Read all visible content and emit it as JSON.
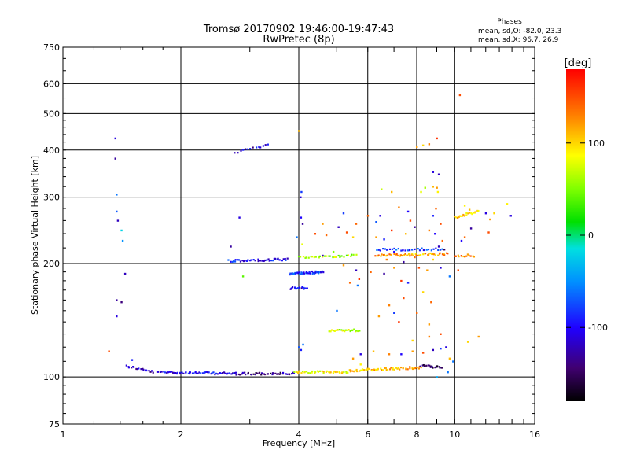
{
  "chart_data": {
    "type": "scatter",
    "title": "Tromsø 20170902 19:46:00-19:47:43",
    "subtitle": "RwPretec (8p)",
    "xlabel": "Frequency [MHz]",
    "ylabel": "Stationary phase Virtual Height [km]",
    "x_scale": "log",
    "y_scale": "log",
    "xlim": [
      1,
      16
    ],
    "ylim": [
      75,
      750
    ],
    "xticks": [
      "1",
      "2",
      "4",
      "6",
      "8",
      "10",
      "16"
    ],
    "yticks": [
      "75",
      "100",
      "200",
      "300",
      "400",
      "500",
      "600",
      "750"
    ],
    "grid": true,
    "phase_info": {
      "heading": "Phases",
      "line_o": "mean, sd,O: -82.0, 23.3",
      "line_x": "mean, sd,X:  96.7, 26.9"
    },
    "colorbar": {
      "label": "[deg]",
      "range": [
        -180,
        180
      ],
      "ticks": [
        "100",
        "0",
        "-100"
      ],
      "tick_values": [
        100,
        0,
        -100
      ]
    },
    "traces": [
      {
        "x_start": 1.45,
        "x_end": 1.7,
        "y_start": 107,
        "y_end": 103,
        "n": 18,
        "phase": -120
      },
      {
        "x_start": 1.75,
        "x_end": 2.75,
        "y_start": 103,
        "y_end": 102,
        "n": 55,
        "phase": -105
      },
      {
        "x_start": 2.75,
        "x_end": 3.9,
        "y_start": 102,
        "y_end": 102,
        "n": 40,
        "phase": -140
      },
      {
        "x_start": 3.9,
        "x_end": 5.4,
        "y_start": 103,
        "y_end": 103,
        "n": 40,
        "phase": 90
      },
      {
        "x_start": 5.4,
        "x_end": 8.2,
        "y_start": 104,
        "y_end": 106,
        "n": 55,
        "phase": 110
      },
      {
        "x_start": 8.2,
        "x_end": 9.3,
        "y_start": 107,
        "y_end": 106,
        "n": 20,
        "phase": -150
      },
      {
        "x_start": 2.65,
        "x_end": 3.75,
        "y_start": 203,
        "y_end": 205,
        "n": 40,
        "phase": -95
      },
      {
        "x_start": 3.8,
        "x_end": 4.6,
        "y_start": 188,
        "y_end": 190,
        "n": 45,
        "phase": -85
      },
      {
        "x_start": 3.8,
        "x_end": 4.2,
        "y_start": 172,
        "y_end": 172,
        "n": 18,
        "phase": -100
      },
      {
        "x_start": 4.8,
        "x_end": 5.7,
        "y_start": 133,
        "y_end": 133,
        "n": 25,
        "phase": 75
      },
      {
        "x_start": 4.0,
        "x_end": 5.6,
        "y_start": 208,
        "y_end": 210,
        "n": 30,
        "phase": 60
      },
      {
        "x_start": 6.3,
        "x_end": 9.6,
        "y_start": 210,
        "y_end": 212,
        "n": 50,
        "phase": 120
      },
      {
        "x_start": 6.3,
        "x_end": 9.3,
        "y_start": 218,
        "y_end": 218,
        "n": 30,
        "phase": -80
      },
      {
        "x_start": 10.0,
        "x_end": 11.2,
        "y_start": 210,
        "y_end": 210,
        "n": 14,
        "phase": 130
      },
      {
        "x_start": 10.0,
        "x_end": 11.5,
        "y_start": 265,
        "y_end": 275,
        "n": 20,
        "phase": 100
      },
      {
        "x_start": 2.75,
        "x_end": 3.35,
        "y_start": 395,
        "y_end": 412,
        "n": 14,
        "phase": -110
      }
    ],
    "points": [
      {
        "x": 1.36,
        "y": 430,
        "phase": -110
      },
      {
        "x": 1.36,
        "y": 380,
        "phase": -130
      },
      {
        "x": 1.37,
        "y": 305,
        "phase": -60
      },
      {
        "x": 1.37,
        "y": 275,
        "phase": -70
      },
      {
        "x": 1.38,
        "y": 260,
        "phase": -120
      },
      {
        "x": 1.41,
        "y": 245,
        "phase": -20
      },
      {
        "x": 1.42,
        "y": 230,
        "phase": -50
      },
      {
        "x": 1.44,
        "y": 188,
        "phase": -120
      },
      {
        "x": 1.37,
        "y": 160,
        "phase": -130
      },
      {
        "x": 1.41,
        "y": 158,
        "phase": -140
      },
      {
        "x": 1.37,
        "y": 145,
        "phase": -110
      },
      {
        "x": 1.31,
        "y": 117,
        "phase": 150
      },
      {
        "x": 1.5,
        "y": 111,
        "phase": -90
      },
      {
        "x": 2.68,
        "y": 222,
        "phase": -130
      },
      {
        "x": 2.82,
        "y": 265,
        "phase": -110
      },
      {
        "x": 2.88,
        "y": 185,
        "phase": 40
      },
      {
        "x": 4.0,
        "y": 450,
        "phase": 110
      },
      {
        "x": 4.06,
        "y": 310,
        "phase": -80
      },
      {
        "x": 4.04,
        "y": 300,
        "phase": -110
      },
      {
        "x": 4.05,
        "y": 265,
        "phase": -100
      },
      {
        "x": 4.09,
        "y": 255,
        "phase": -130
      },
      {
        "x": 3.95,
        "y": 235,
        "phase": -60
      },
      {
        "x": 4.08,
        "y": 225,
        "phase": 80
      },
      {
        "x": 4.0,
        "y": 120,
        "phase": -70
      },
      {
        "x": 4.05,
        "y": 118,
        "phase": -90
      },
      {
        "x": 4.1,
        "y": 122,
        "phase": -60
      },
      {
        "x": 4.4,
        "y": 240,
        "phase": 150
      },
      {
        "x": 4.7,
        "y": 238,
        "phase": 140
      },
      {
        "x": 4.6,
        "y": 255,
        "phase": 120
      },
      {
        "x": 5.05,
        "y": 250,
        "phase": -120
      },
      {
        "x": 5.3,
        "y": 242,
        "phase": 150
      },
      {
        "x": 5.5,
        "y": 235,
        "phase": 100
      },
      {
        "x": 5.6,
        "y": 255,
        "phase": 140
      },
      {
        "x": 5.2,
        "y": 198,
        "phase": 120
      },
      {
        "x": 5.6,
        "y": 192,
        "phase": -120
      },
      {
        "x": 5.7,
        "y": 182,
        "phase": 160
      },
      {
        "x": 5.0,
        "y": 150,
        "phase": -60
      },
      {
        "x": 5.4,
        "y": 178,
        "phase": 140
      },
      {
        "x": 5.65,
        "y": 175,
        "phase": -60
      },
      {
        "x": 5.5,
        "y": 112,
        "phase": 120
      },
      {
        "x": 5.75,
        "y": 108,
        "phase": 90
      },
      {
        "x": 5.75,
        "y": 115,
        "phase": -110
      },
      {
        "x": 6.5,
        "y": 315,
        "phase": 70
      },
      {
        "x": 6.9,
        "y": 310,
        "phase": 110
      },
      {
        "x": 7.2,
        "y": 282,
        "phase": 130
      },
      {
        "x": 7.6,
        "y": 275,
        "phase": -100
      },
      {
        "x": 7.7,
        "y": 260,
        "phase": 150
      },
      {
        "x": 7.9,
        "y": 250,
        "phase": -130
      },
      {
        "x": 8.3,
        "y": 412,
        "phase": 100
      },
      {
        "x": 8.6,
        "y": 415,
        "phase": 130
      },
      {
        "x": 8.0,
        "y": 408,
        "phase": 120
      },
      {
        "x": 9.0,
        "y": 430,
        "phase": 160
      },
      {
        "x": 8.8,
        "y": 350,
        "phase": -110
      },
      {
        "x": 9.1,
        "y": 345,
        "phase": -120
      },
      {
        "x": 8.8,
        "y": 320,
        "phase": 110
      },
      {
        "x": 9.0,
        "y": 318,
        "phase": 120
      },
      {
        "x": 9.05,
        "y": 310,
        "phase": 90
      },
      {
        "x": 8.4,
        "y": 318,
        "phase": 60
      },
      {
        "x": 8.2,
        "y": 310,
        "phase": 80
      },
      {
        "x": 8.95,
        "y": 280,
        "phase": 140
      },
      {
        "x": 8.8,
        "y": 268,
        "phase": -90
      },
      {
        "x": 9.2,
        "y": 255,
        "phase": 150
      },
      {
        "x": 8.6,
        "y": 245,
        "phase": 130
      },
      {
        "x": 8.9,
        "y": 240,
        "phase": -100
      },
      {
        "x": 6.3,
        "y": 235,
        "phase": 120
      },
      {
        "x": 6.6,
        "y": 232,
        "phase": -90
      },
      {
        "x": 6.9,
        "y": 245,
        "phase": 160
      },
      {
        "x": 7.5,
        "y": 240,
        "phase": 110
      },
      {
        "x": 6.1,
        "y": 190,
        "phase": 140
      },
      {
        "x": 6.6,
        "y": 188,
        "phase": -130
      },
      {
        "x": 7.0,
        "y": 195,
        "phase": 120
      },
      {
        "x": 7.3,
        "y": 180,
        "phase": 160
      },
      {
        "x": 7.6,
        "y": 178,
        "phase": -90
      },
      {
        "x": 8.1,
        "y": 195,
        "phase": 150
      },
      {
        "x": 8.5,
        "y": 192,
        "phase": 120
      },
      {
        "x": 8.3,
        "y": 168,
        "phase": 100
      },
      {
        "x": 8.7,
        "y": 158,
        "phase": 140
      },
      {
        "x": 9.2,
        "y": 195,
        "phase": -110
      },
      {
        "x": 9.7,
        "y": 185,
        "phase": -60
      },
      {
        "x": 6.8,
        "y": 155,
        "phase": 130
      },
      {
        "x": 7.0,
        "y": 148,
        "phase": -80
      },
      {
        "x": 7.4,
        "y": 162,
        "phase": 150
      },
      {
        "x": 6.4,
        "y": 145,
        "phase": 120
      },
      {
        "x": 7.2,
        "y": 140,
        "phase": 160
      },
      {
        "x": 8.0,
        "y": 148,
        "phase": 140
      },
      {
        "x": 8.6,
        "y": 138,
        "phase": 120
      },
      {
        "x": 8.6,
        "y": 128,
        "phase": 130
      },
      {
        "x": 7.8,
        "y": 125,
        "phase": 100
      },
      {
        "x": 9.2,
        "y": 130,
        "phase": 150
      },
      {
        "x": 6.2,
        "y": 117,
        "phase": 110
      },
      {
        "x": 6.8,
        "y": 115,
        "phase": 130
      },
      {
        "x": 7.3,
        "y": 115,
        "phase": -100
      },
      {
        "x": 7.8,
        "y": 117,
        "phase": 120
      },
      {
        "x": 8.3,
        "y": 116,
        "phase": 150
      },
      {
        "x": 8.8,
        "y": 118,
        "phase": -120
      },
      {
        "x": 9.2,
        "y": 119,
        "phase": -80
      },
      {
        "x": 9.5,
        "y": 120,
        "phase": -110
      },
      {
        "x": 9.7,
        "y": 112,
        "phase": 110
      },
      {
        "x": 9.9,
        "y": 110,
        "phase": -60
      },
      {
        "x": 10.8,
        "y": 124,
        "phase": 100
      },
      {
        "x": 11.5,
        "y": 128,
        "phase": 120
      },
      {
        "x": 10.3,
        "y": 560,
        "phase": 150
      },
      {
        "x": 10.6,
        "y": 285,
        "phase": 90
      },
      {
        "x": 10.9,
        "y": 278,
        "phase": 110
      },
      {
        "x": 12.0,
        "y": 272,
        "phase": -110
      },
      {
        "x": 12.3,
        "y": 262,
        "phase": 120
      },
      {
        "x": 12.6,
        "y": 272,
        "phase": 100
      },
      {
        "x": 13.6,
        "y": 288,
        "phase": 90
      },
      {
        "x": 13.9,
        "y": 268,
        "phase": -110
      },
      {
        "x": 12.2,
        "y": 242,
        "phase": 150
      },
      {
        "x": 11.0,
        "y": 248,
        "phase": -130
      },
      {
        "x": 10.4,
        "y": 230,
        "phase": -100
      },
      {
        "x": 10.6,
        "y": 235,
        "phase": 140
      },
      {
        "x": 10.2,
        "y": 192,
        "phase": 150
      },
      {
        "x": 9.0,
        "y": 100,
        "phase": -40
      },
      {
        "x": 9.6,
        "y": 103,
        "phase": -60
      },
      {
        "x": 5.2,
        "y": 272,
        "phase": -80
      },
      {
        "x": 6.0,
        "y": 268,
        "phase": 140
      },
      {
        "x": 6.3,
        "y": 258,
        "phase": -70
      },
      {
        "x": 6.45,
        "y": 268,
        "phase": -110
      },
      {
        "x": 4.6,
        "y": 210,
        "phase": -120
      },
      {
        "x": 4.9,
        "y": 215,
        "phase": 50
      },
      {
        "x": 6.7,
        "y": 205,
        "phase": 130
      },
      {
        "x": 7.0,
        "y": 215,
        "phase": -100
      },
      {
        "x": 7.4,
        "y": 202,
        "phase": -130
      },
      {
        "x": 7.9,
        "y": 208,
        "phase": 140
      },
      {
        "x": 8.8,
        "y": 205,
        "phase": 100
      },
      {
        "x": 9.1,
        "y": 222,
        "phase": -120
      },
      {
        "x": 9.3,
        "y": 230,
        "phase": 140
      },
      {
        "x": 9.4,
        "y": 218,
        "phase": -150
      }
    ]
  }
}
